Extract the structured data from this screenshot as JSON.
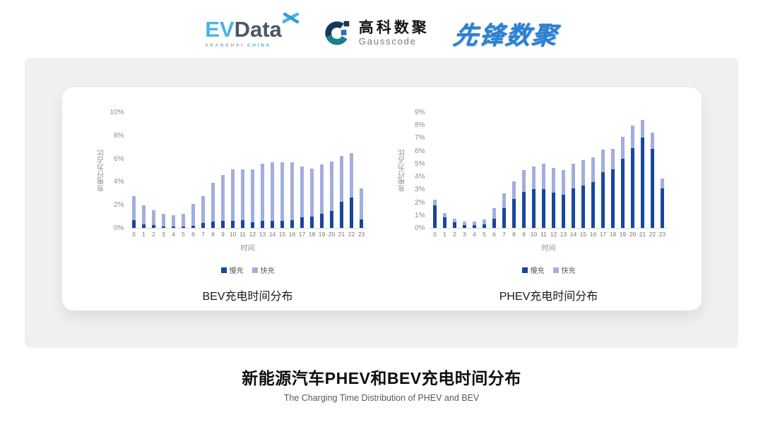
{
  "header": {
    "evdata": {
      "ev": "EV",
      "data": "Data",
      "sub_left": "SHANGHAI",
      "sub_right": "CHINA"
    },
    "gausscode": {
      "cn": "高科数聚",
      "en": "Gausscode"
    },
    "xianfeng": "先锋数聚"
  },
  "footer": {
    "title": "新能源汽车PHEV和BEV充电时间分布",
    "subtitle": "The Charging Time Distribution of PHEV and BEV"
  },
  "colors": {
    "slow": "#17479E",
    "fast": "#A2AEDE",
    "gray_bg": "#F0F0F0",
    "axis_text": "#8C8C8C",
    "baseline": "#D8D8D8"
  },
  "chart_data": [
    {
      "id": "bev",
      "type": "bar",
      "stacked": true,
      "title": "BEV充电时间分布",
      "xlabel": "时间",
      "ylabel": "充电行为占比",
      "ylim": [
        0,
        10
      ],
      "ytick_step": 2,
      "grid": false,
      "legend_position": "bottom",
      "categories": [
        "0",
        "1",
        "2",
        "3",
        "4",
        "5",
        "6",
        "7",
        "8",
        "9",
        "10",
        "11",
        "12",
        "13",
        "14",
        "15",
        "16",
        "17",
        "18",
        "19",
        "20",
        "21",
        "22",
        "23"
      ],
      "series": [
        {
          "name": "慢充",
          "color": "#17479E",
          "values": [
            0.65,
            0.3,
            0.25,
            0.15,
            0.12,
            0.15,
            0.2,
            0.4,
            0.55,
            0.6,
            0.6,
            0.65,
            0.5,
            0.6,
            0.6,
            0.6,
            0.7,
            0.9,
            1.0,
            1.2,
            1.45,
            2.25,
            2.6,
            0.75
          ]
        },
        {
          "name": "快充",
          "color": "#A2AEDE",
          "values": [
            2.1,
            1.65,
            1.3,
            1.05,
            1.0,
            1.1,
            1.85,
            2.35,
            3.35,
            4.0,
            4.45,
            4.4,
            4.55,
            4.95,
            5.1,
            5.05,
            5.0,
            4.4,
            4.15,
            4.3,
            4.3,
            4.0,
            3.85,
            2.65
          ]
        }
      ]
    },
    {
      "id": "phev",
      "type": "bar",
      "stacked": true,
      "title": "PHEV充电时间分布",
      "xlabel": "时间",
      "ylabel": "充电行为占比",
      "ylim": [
        0,
        9
      ],
      "ytick_step": 1,
      "grid": false,
      "legend_position": "bottom",
      "categories": [
        "0",
        "1",
        "2",
        "3",
        "4",
        "5",
        "6",
        "7",
        "8",
        "9",
        "10",
        "11",
        "12",
        "13",
        "14",
        "15",
        "16",
        "17",
        "18",
        "19",
        "20",
        "21",
        "22",
        "23"
      ],
      "series": [
        {
          "name": "慢充",
          "color": "#17479E",
          "values": [
            1.75,
            0.8,
            0.45,
            0.2,
            0.2,
            0.3,
            0.7,
            1.55,
            2.25,
            2.8,
            3.0,
            3.0,
            2.75,
            2.6,
            3.05,
            3.3,
            3.55,
            4.35,
            4.55,
            5.4,
            6.2,
            7.0,
            6.15,
            3.05
          ]
        },
        {
          "name": "快充",
          "color": "#A2AEDE",
          "values": [
            0.45,
            0.35,
            0.27,
            0.3,
            0.3,
            0.35,
            0.85,
            1.15,
            1.4,
            1.7,
            1.8,
            2.0,
            1.9,
            1.9,
            1.95,
            2.0,
            1.95,
            1.75,
            1.6,
            1.7,
            1.75,
            1.4,
            1.25,
            0.8
          ]
        }
      ]
    }
  ]
}
